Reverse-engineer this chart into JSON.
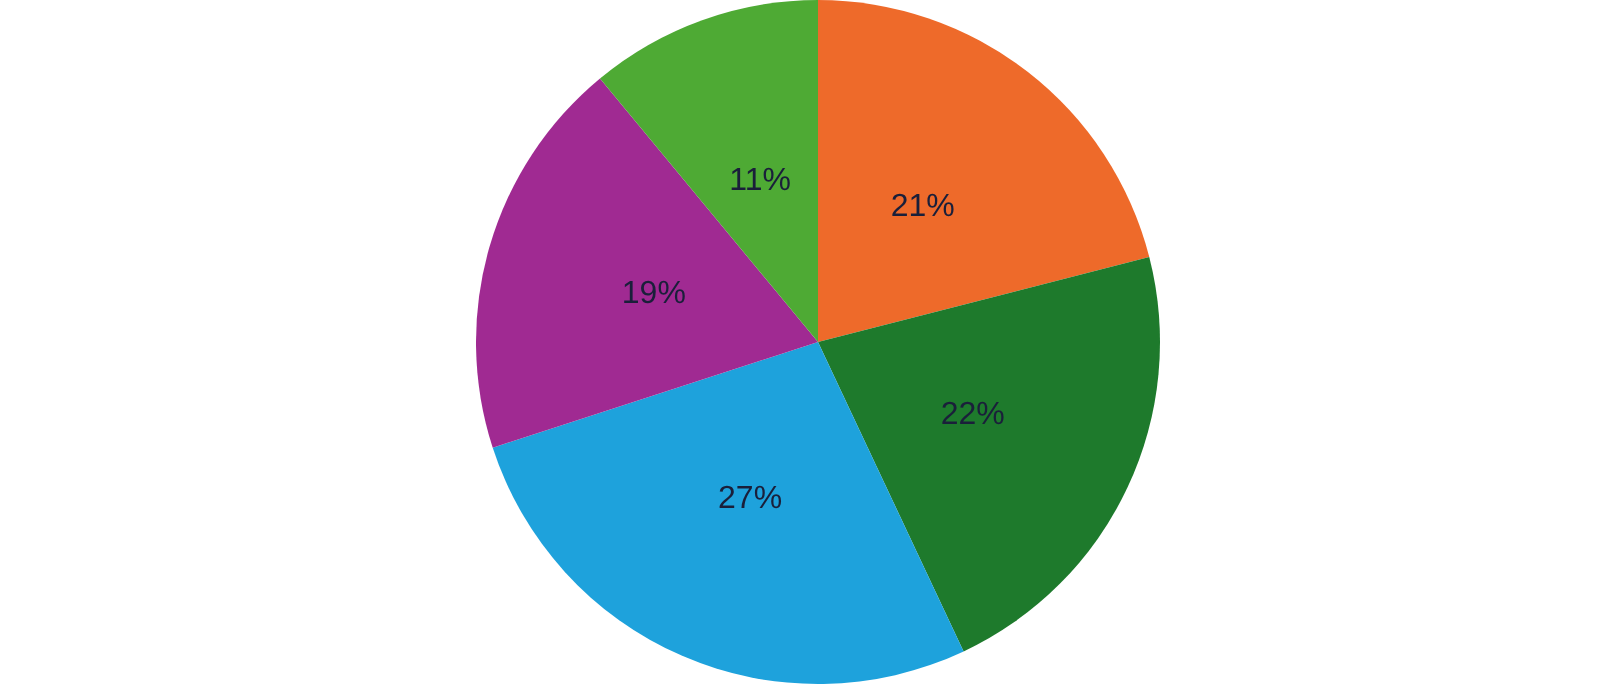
{
  "chart_data": {
    "type": "pie",
    "categories": [
      null,
      null,
      null,
      null,
      null
    ],
    "values": [
      21,
      22,
      27,
      19,
      11
    ],
    "colors": [
      "#ee6a2a",
      "#1e7a2c",
      "#1ea2dc",
      "#a02a92",
      "#4eaa34"
    ],
    "value_labels": [
      "21%",
      "22%",
      "27%",
      "19%",
      "11%"
    ]
  }
}
